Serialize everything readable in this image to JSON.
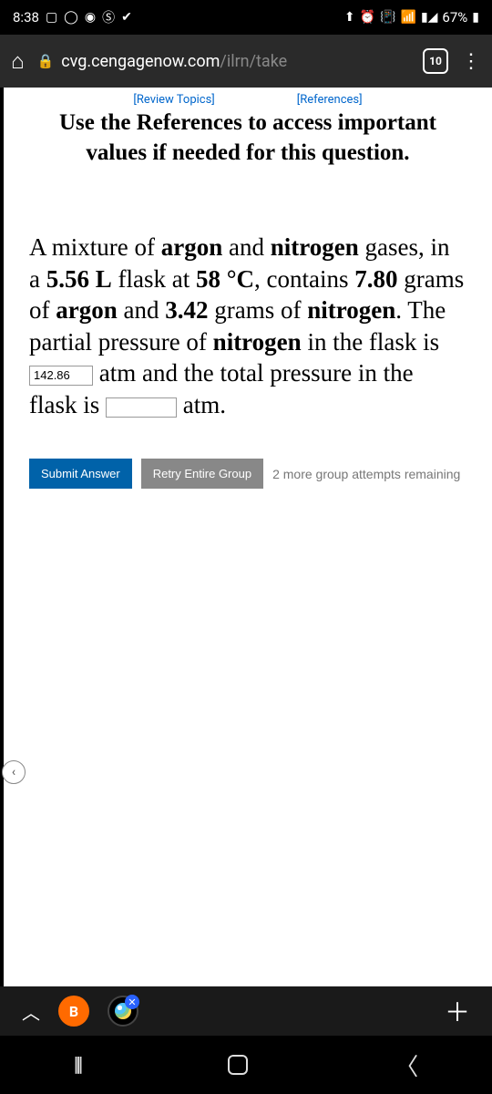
{
  "status": {
    "time": "8:38",
    "battery": "67%"
  },
  "browser": {
    "url_domain": "cvg.cengagenow.com",
    "url_path": "/ilrn/take",
    "tab_count": "10"
  },
  "links": {
    "review": "[Review Topics]",
    "references": "[References]"
  },
  "instruction": "Use the References to access important values if needed for this question.",
  "question": {
    "p1_a": "A mixture of ",
    "p1_b": "argon",
    "p1_c": " and ",
    "p1_d": "nitrogen",
    "p1_e": " gases, in a ",
    "p1_f": "5.56 L",
    "p1_g": " flask at ",
    "p1_h": "58 °C",
    "p1_i": ", contains ",
    "p1_j": "7.80",
    "p1_k": " grams of ",
    "p1_l": "argon",
    "p1_m": " and ",
    "p1_n": "3.42",
    "p1_o": " grams of ",
    "p1_p": "nitrogen",
    "p1_q": ". The partial pressure of ",
    "p1_r": "nitrogen",
    "p1_s": " in the flask is ",
    "input1_value": "142.86",
    "p1_t": " atm and the total pressure in the flask is ",
    "p1_u": " atm."
  },
  "buttons": {
    "submit": "Submit Answer",
    "retry": "Retry Entire Group",
    "attempts": "2 more group attempts remaining"
  },
  "tab_circle_label": "B"
}
